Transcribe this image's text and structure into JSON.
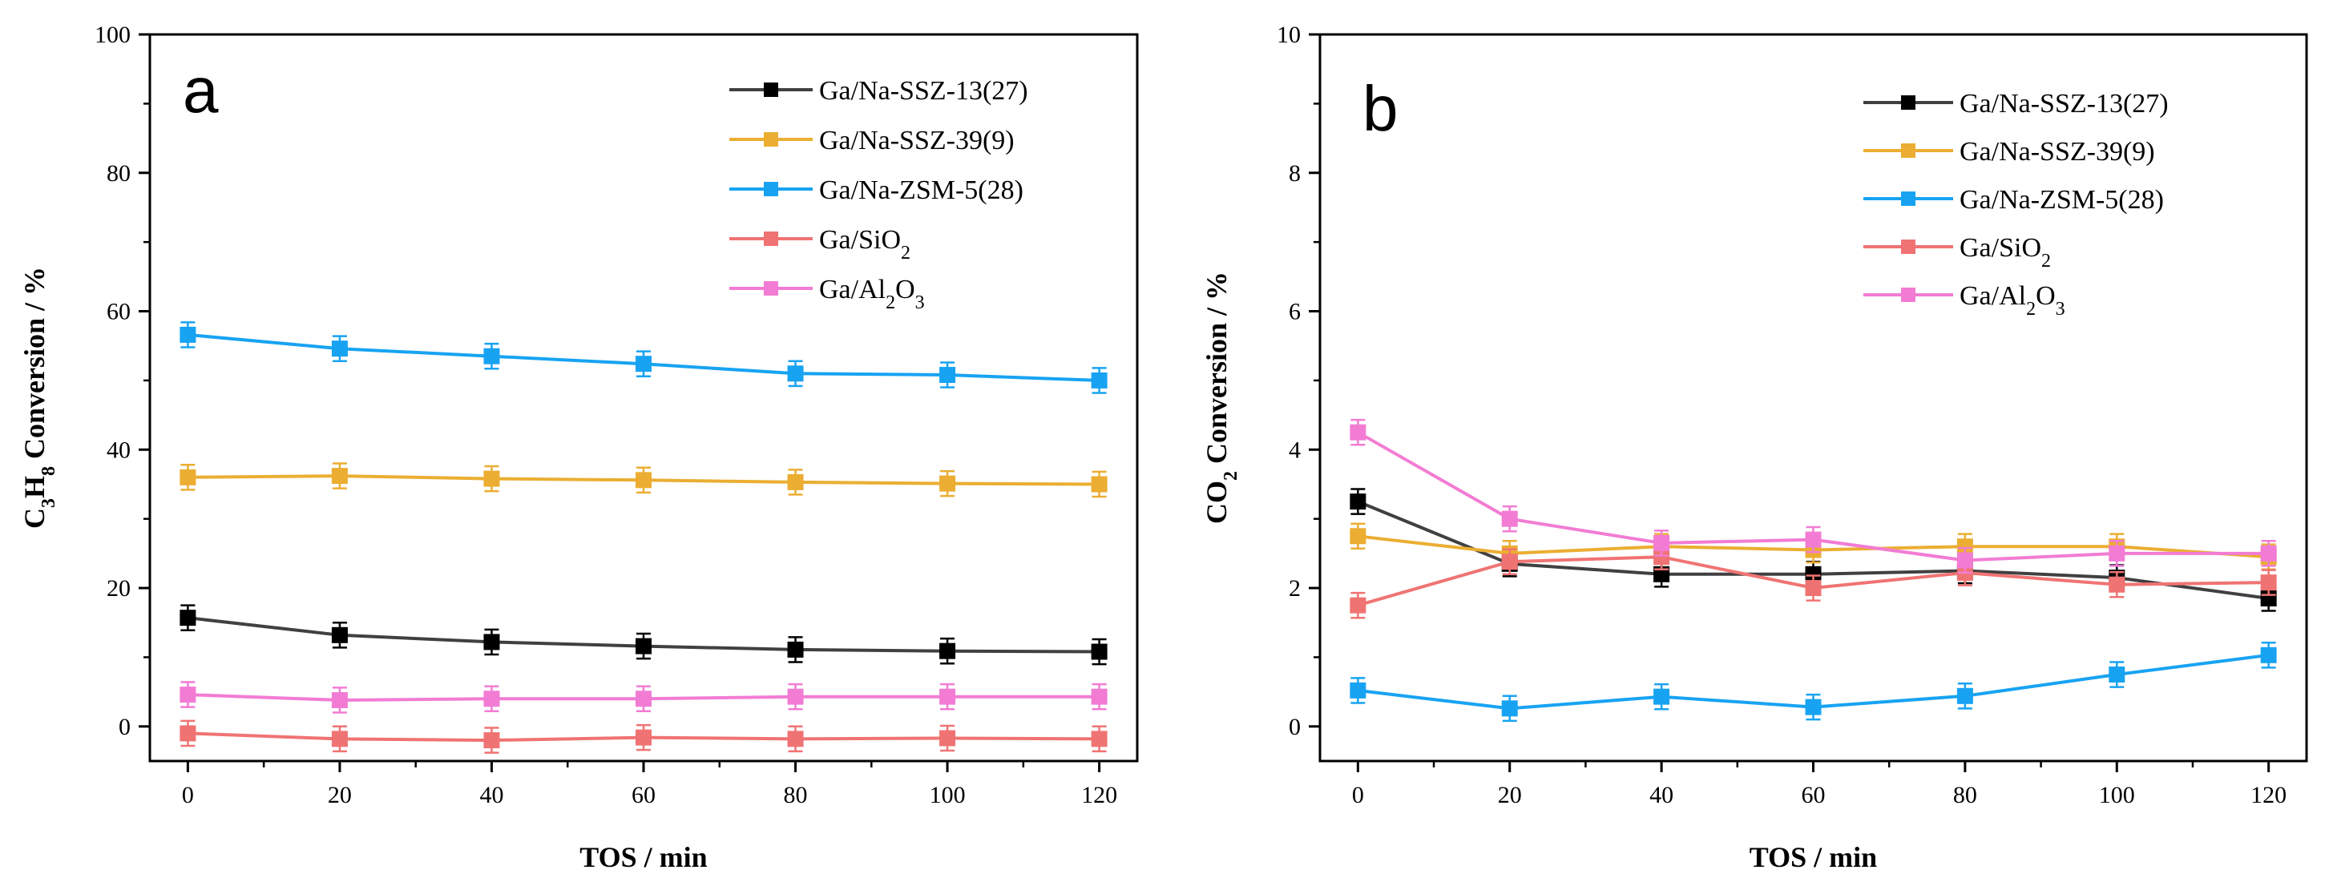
{
  "chart_data": [
    {
      "type": "line",
      "panel": "a",
      "xlabel": "TOS / min",
      "ylabel": {
        "parts": [
          {
            "t": "C"
          },
          {
            "t": "3",
            "sub": true
          },
          {
            "t": "H"
          },
          {
            "t": "8",
            "sub": true
          },
          {
            "t": " Conversion / %"
          }
        ]
      },
      "xlim": [
        -5,
        125
      ],
      "ylim": [
        -5,
        100
      ],
      "xticks": [
        0,
        20,
        40,
        60,
        80,
        100,
        120
      ],
      "yticks": [
        0,
        20,
        40,
        60,
        80,
        100
      ],
      "x": [
        0,
        20,
        40,
        60,
        80,
        100,
        120
      ],
      "legend_position": "top-right",
      "series": [
        {
          "name": "Ga/Na-SSZ-13(27)",
          "label_parts": [
            {
              "t": "Ga/Na-SSZ-13(27)"
            }
          ],
          "color": "#000000",
          "line_color": "#404040",
          "values": [
            15.7,
            13.2,
            12.2,
            11.6,
            11.1,
            10.9,
            10.8
          ],
          "errors": [
            1.8,
            1.8,
            1.8,
            1.8,
            1.8,
            1.8,
            1.8
          ]
        },
        {
          "name": "Ga/Na-SSZ-39(9)",
          "label_parts": [
            {
              "t": "Ga/Na-SSZ-39(9)"
            }
          ],
          "color": "#EBAE32",
          "line_color": "#EBAE32",
          "values": [
            36.0,
            36.2,
            35.8,
            35.6,
            35.3,
            35.1,
            35.0
          ],
          "errors": [
            1.8,
            1.8,
            1.8,
            1.8,
            1.8,
            1.8,
            1.8
          ]
        },
        {
          "name": "Ga/Na-ZSM-5(28)",
          "label_parts": [
            {
              "t": "Ga/Na-ZSM-5(28)"
            }
          ],
          "color": "#18A3F2",
          "line_color": "#18A3F2",
          "values": [
            56.6,
            54.6,
            53.5,
            52.4,
            51.0,
            50.8,
            50.0
          ],
          "errors": [
            1.8,
            1.8,
            1.8,
            1.8,
            1.8,
            1.8,
            1.8
          ]
        },
        {
          "name": "Ga/SiO2",
          "label_parts": [
            {
              "t": "Ga/SiO"
            },
            {
              "t": "2",
              "sub": true
            }
          ],
          "color": "#F07373",
          "line_color": "#F07373",
          "values": [
            -1.0,
            -1.8,
            -2.0,
            -1.6,
            -1.8,
            -1.7,
            -1.8
          ],
          "errors": [
            1.8,
            1.8,
            1.8,
            1.8,
            1.8,
            1.8,
            1.8
          ]
        },
        {
          "name": "Ga/Al2O3",
          "label_parts": [
            {
              "t": "Ga/Al"
            },
            {
              "t": "2",
              "sub": true
            },
            {
              "t": "O"
            },
            {
              "t": "3",
              "sub": true
            }
          ],
          "color": "#F27CD4",
          "line_color": "#F27CD4",
          "values": [
            4.6,
            3.8,
            4.0,
            4.0,
            4.3,
            4.3,
            4.3
          ],
          "errors": [
            1.8,
            1.8,
            1.8,
            1.8,
            1.8,
            1.8,
            1.8
          ]
        }
      ]
    },
    {
      "type": "line",
      "panel": "b",
      "xlabel": "TOS / min",
      "ylabel": {
        "parts": [
          {
            "t": "CO"
          },
          {
            "t": "2",
            "sub": true
          },
          {
            "t": " Conversion / %"
          }
        ]
      },
      "xlim": [
        -5,
        125
      ],
      "ylim": [
        -0.5,
        10
      ],
      "xticks": [
        0,
        20,
        40,
        60,
        80,
        100,
        120
      ],
      "yticks": [
        0,
        2,
        4,
        6,
        8,
        10
      ],
      "x": [
        0,
        20,
        40,
        60,
        80,
        100,
        120
      ],
      "legend_position": "top-right",
      "series": [
        {
          "name": "Ga/Na-SSZ-13(27)",
          "label_parts": [
            {
              "t": "Ga/Na-SSZ-13(27)"
            }
          ],
          "color": "#000000",
          "line_color": "#404040",
          "values": [
            3.25,
            2.35,
            2.2,
            2.2,
            2.25,
            2.15,
            1.85
          ],
          "errors": [
            0.18,
            0.18,
            0.18,
            0.18,
            0.18,
            0.18,
            0.18
          ]
        },
        {
          "name": "Ga/Na-SSZ-39(9)",
          "label_parts": [
            {
              "t": "Ga/Na-SSZ-39(9)"
            }
          ],
          "color": "#EBAE32",
          "line_color": "#EBAE32",
          "values": [
            2.75,
            2.5,
            2.6,
            2.55,
            2.6,
            2.6,
            2.45
          ],
          "errors": [
            0.18,
            0.18,
            0.18,
            0.18,
            0.18,
            0.18,
            0.18
          ]
        },
        {
          "name": "Ga/Na-ZSM-5(28)",
          "label_parts": [
            {
              "t": "Ga/Na-ZSM-5(28)"
            }
          ],
          "color": "#18A3F2",
          "line_color": "#18A3F2",
          "values": [
            0.52,
            0.26,
            0.43,
            0.28,
            0.44,
            0.75,
            1.03
          ],
          "errors": [
            0.18,
            0.18,
            0.18,
            0.18,
            0.18,
            0.18,
            0.18
          ]
        },
        {
          "name": "Ga/SiO2",
          "label_parts": [
            {
              "t": "Ga/SiO"
            },
            {
              "t": "2",
              "sub": true
            }
          ],
          "color": "#F07373",
          "line_color": "#F07373",
          "values": [
            1.75,
            2.38,
            2.45,
            2.0,
            2.22,
            2.05,
            2.08
          ],
          "errors": [
            0.18,
            0.18,
            0.18,
            0.18,
            0.18,
            0.18,
            0.18
          ]
        },
        {
          "name": "Ga/Al2O3",
          "label_parts": [
            {
              "t": "Ga/Al"
            },
            {
              "t": "2",
              "sub": true
            },
            {
              "t": "O"
            },
            {
              "t": "3",
              "sub": true
            }
          ],
          "color": "#F27CD4",
          "line_color": "#F27CD4",
          "values": [
            4.25,
            3.0,
            2.65,
            2.7,
            2.4,
            2.5,
            2.5
          ],
          "errors": [
            0.18,
            0.18,
            0.18,
            0.18,
            0.18,
            0.18,
            0.18
          ]
        }
      ]
    }
  ]
}
